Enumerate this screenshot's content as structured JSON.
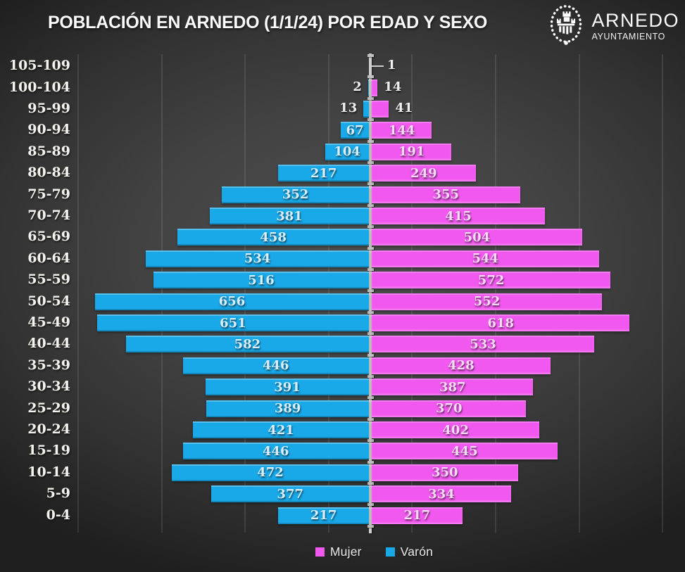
{
  "title": "POBLACIÓN EN ARNEDO (1/1/24) POR EDAD Y SEXO",
  "logo": {
    "name": "ARNEDO",
    "subtitle": "AYUNTAMIENTO",
    "icon": "coat-of-arms-castle-icon"
  },
  "legend": [
    {
      "label": "Mujer",
      "color": "#F158EF"
    },
    {
      "label": "Varón",
      "color": "#19A8E8"
    }
  ],
  "colors": {
    "background_center": "#4e4e4e",
    "background_edge": "#1f1f1f",
    "gridline": "rgba(255,255,255,0.10)",
    "center_axis": "#d2cfcf",
    "varon_bar": "#19A8E8",
    "mujer_bar": "#F158EF",
    "label_text": "#f5f3ee"
  },
  "chart_data": {
    "type": "bar",
    "subtype": "population-pyramid",
    "title": "POBLACIÓN EN ARNEDO (1/1/24) POR EDAD Y SEXO",
    "categories": [
      "105-109",
      "100-104",
      "95-99",
      "90-94",
      "85-89",
      "80-84",
      "75-79",
      "70-74",
      "65-69",
      "60-64",
      "55-59",
      "50-54",
      "45-49",
      "40-44",
      "35-39",
      "30-34",
      "25-29",
      "20-24",
      "15-19",
      "10-14",
      "5-9",
      "0-4"
    ],
    "series": [
      {
        "name": "Varón",
        "side": "left",
        "color": "#19A8E8",
        "values": [
          null,
          2,
          13,
          67,
          104,
          217,
          352,
          381,
          458,
          534,
          516,
          656,
          651,
          582,
          446,
          391,
          389,
          421,
          446,
          472,
          377,
          217
        ]
      },
      {
        "name": "Mujer",
        "side": "right",
        "color": "#F158EF",
        "values": [
          1,
          14,
          41,
          144,
          191,
          249,
          355,
          415,
          504,
          544,
          572,
          552,
          618,
          533,
          428,
          387,
          370,
          402,
          445,
          350,
          334,
          217
        ]
      }
    ],
    "xlim": [
      -700,
      700
    ],
    "gridline_values": [
      100,
      300,
      500,
      700
    ],
    "grid": true,
    "legend_position": "bottom"
  }
}
